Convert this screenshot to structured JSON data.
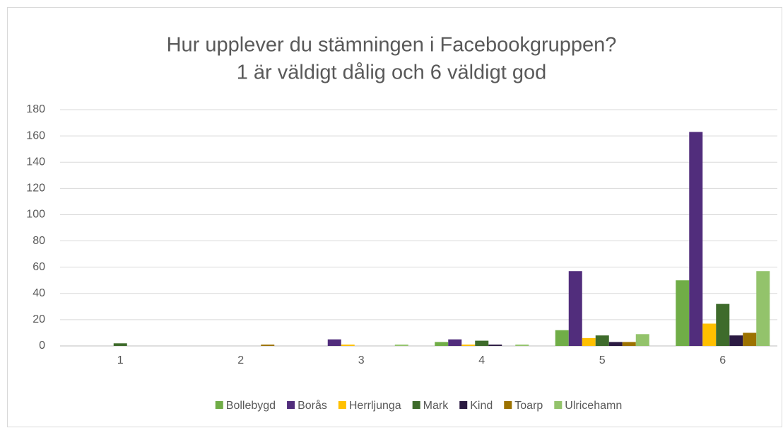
{
  "chart_data": {
    "type": "bar",
    "title": "Hur upplever du stämningen i Facebookgruppen?",
    "subtitle": "1 är väldigt dålig och 6 väldigt god",
    "categories": [
      "1",
      "2",
      "3",
      "4",
      "5",
      "6"
    ],
    "series": [
      {
        "name": "Bollebygd",
        "color": "#70ad47",
        "values": [
          0,
          0,
          0,
          3,
          12,
          50
        ]
      },
      {
        "name": "Borås",
        "color": "#512d7c",
        "values": [
          0,
          0,
          5,
          5,
          57,
          163
        ]
      },
      {
        "name": "Herrljunga",
        "color": "#ffc000",
        "values": [
          0,
          0,
          1,
          1,
          6,
          17
        ]
      },
      {
        "name": "Mark",
        "color": "#3e6b2b",
        "values": [
          2,
          0,
          0,
          4,
          8,
          32
        ]
      },
      {
        "name": "Kind",
        "color": "#2b1a42",
        "values": [
          0,
          0,
          0,
          1,
          3,
          8
        ]
      },
      {
        "name": "Toarp",
        "color": "#9c7200",
        "values": [
          0,
          1,
          0,
          0,
          3,
          10
        ]
      },
      {
        "name": "Ulricehamn",
        "color": "#93c36b",
        "values": [
          0,
          0,
          1,
          1,
          9,
          57
        ]
      }
    ],
    "ylim": [
      0,
      180
    ],
    "yticks": [
      0,
      20,
      40,
      60,
      80,
      100,
      120,
      140,
      160,
      180
    ],
    "grid": true,
    "legend": "bottom"
  }
}
